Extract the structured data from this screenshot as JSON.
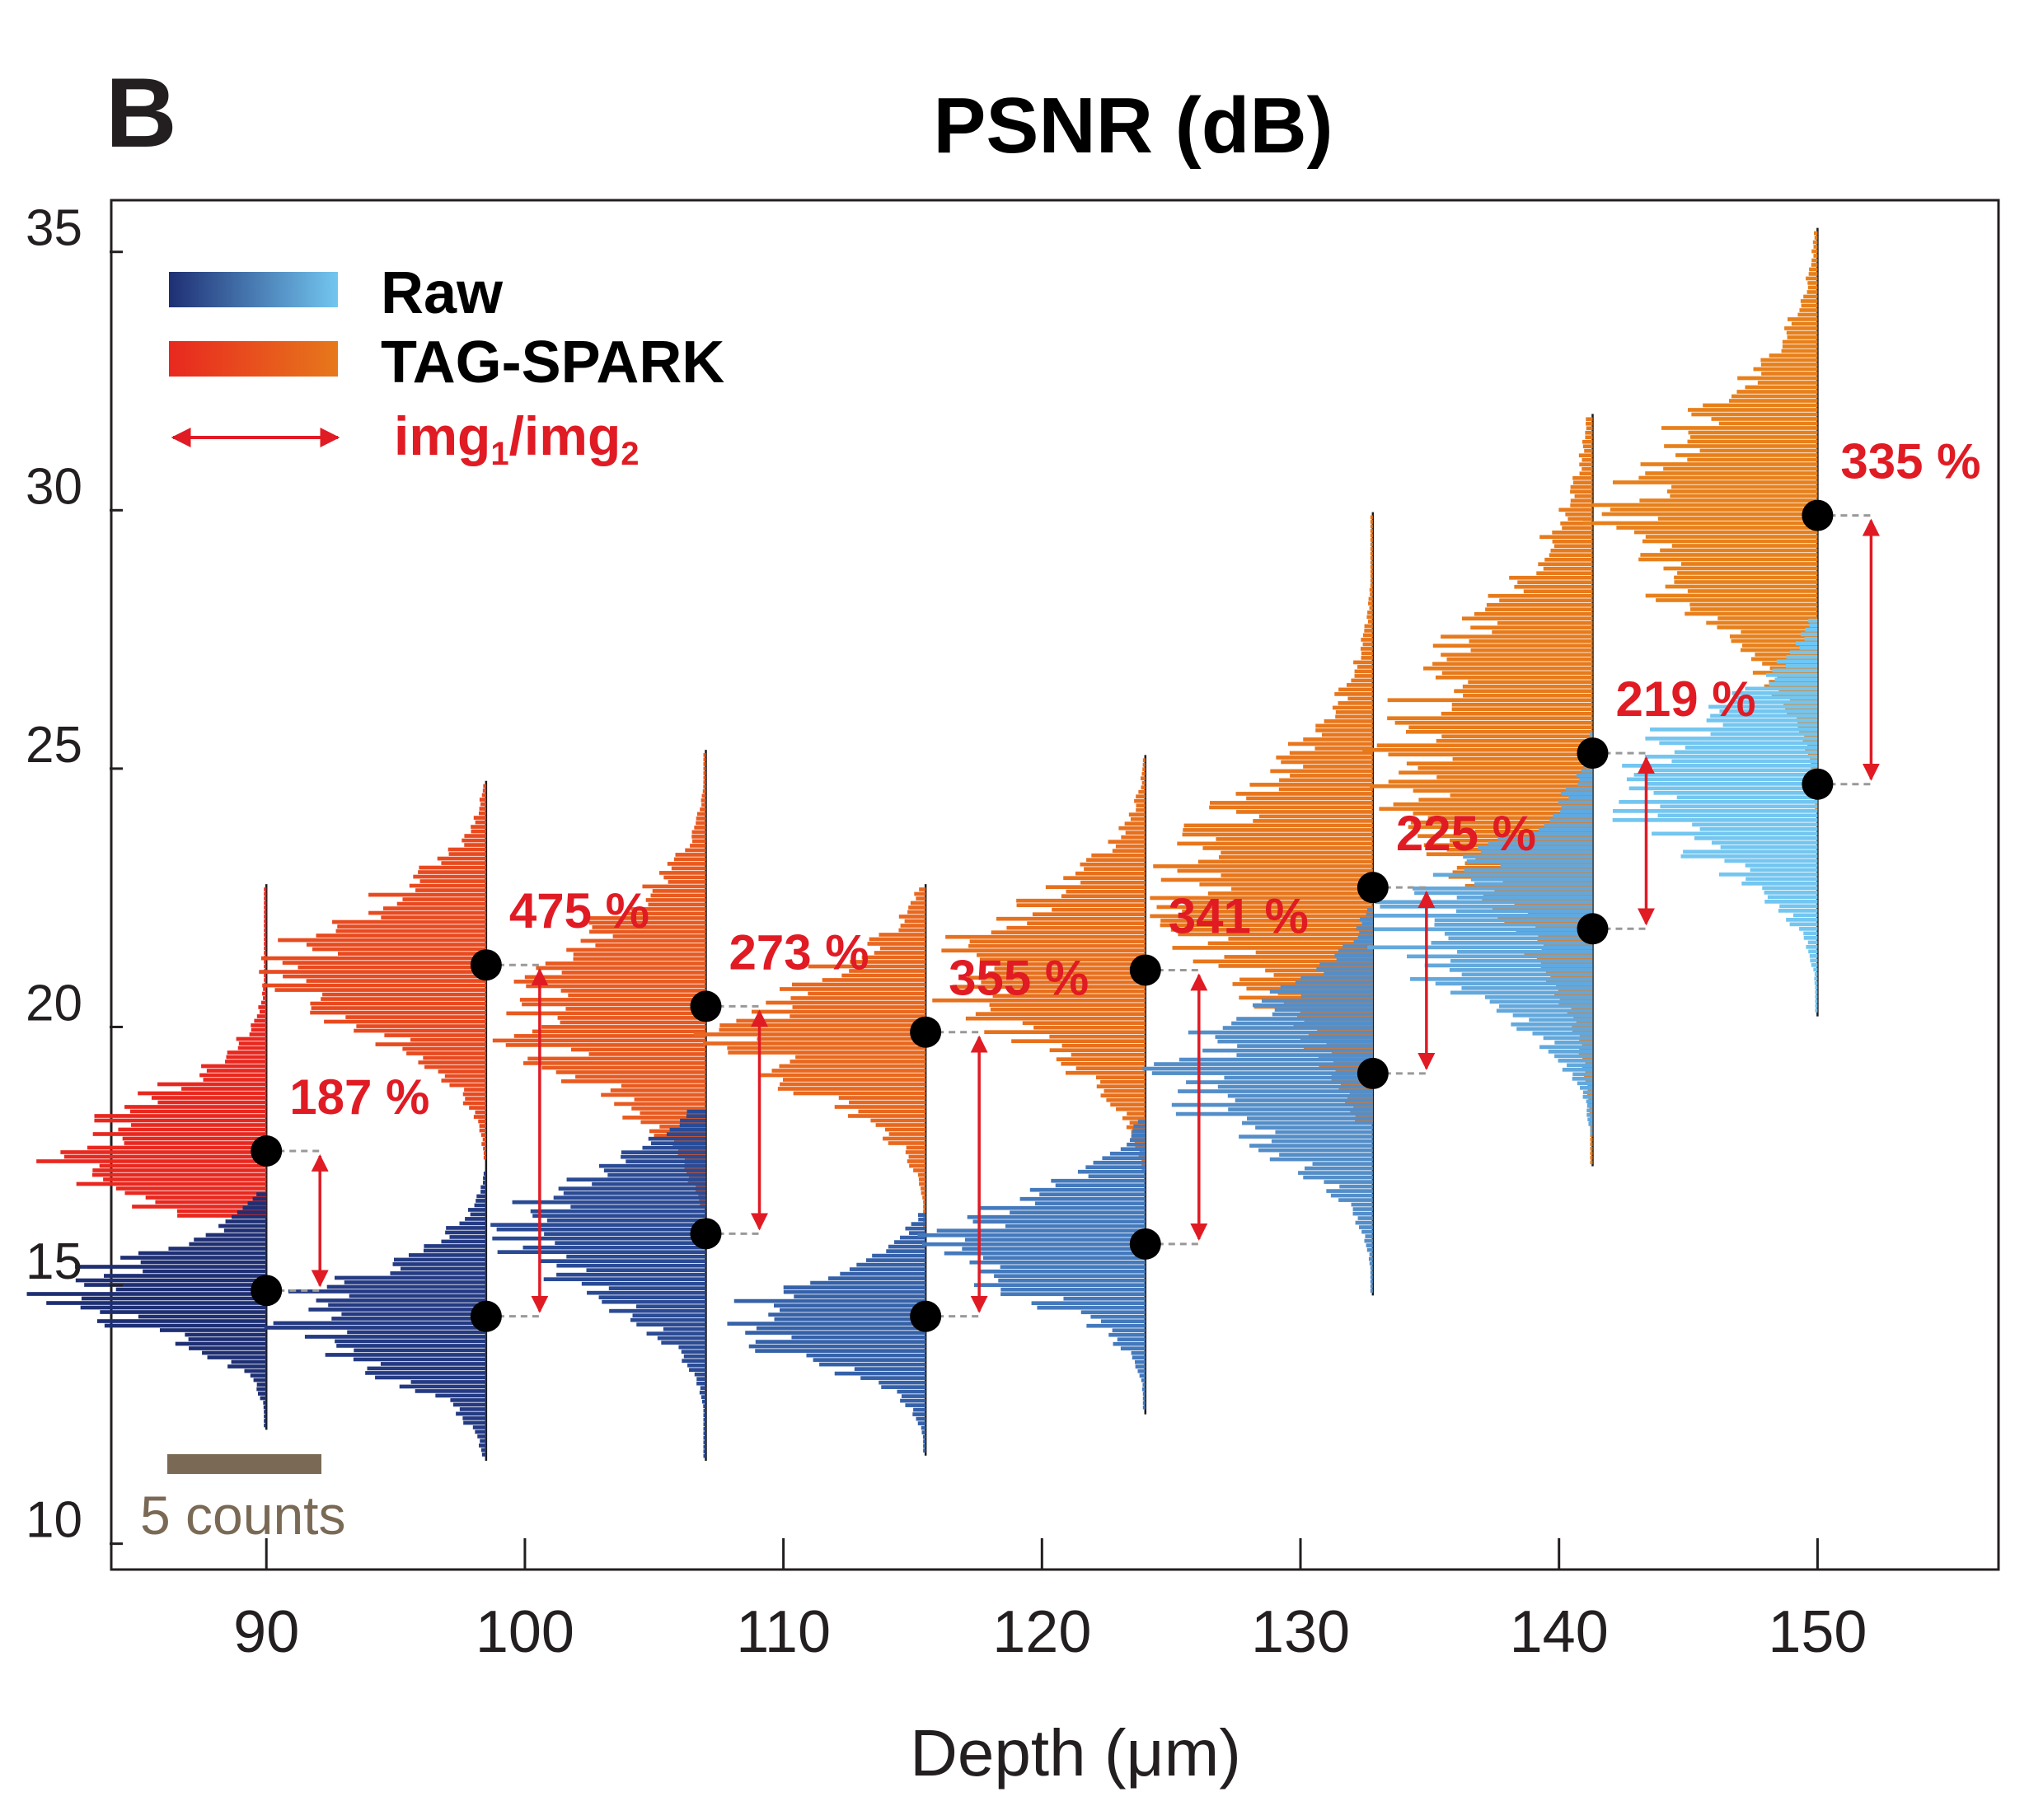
{
  "panel": {
    "letter": "B"
  },
  "chart_data": {
    "type": "histogram-violin",
    "title": "PSNR (dB)",
    "xlabel": "Depth (μm)",
    "ylabel": "",
    "xlim": [
      84,
      157
    ],
    "ylim": [
      9.5,
      36
    ],
    "x_ticks": [
      90,
      100,
      110,
      120,
      130,
      140,
      150
    ],
    "y_ticks": [
      10,
      15,
      20,
      25,
      30,
      35
    ],
    "grid": false,
    "legend": {
      "placement": "top-left",
      "entries": [
        {
          "label": "Raw",
          "color_start": "#1e2f73",
          "color_end": "#73c6f0"
        },
        {
          "label": "TAG-SPARK",
          "color_start": "#e8281f",
          "color_end": "#e7781b"
        },
        {
          "label_prefix": "img",
          "sub1": "1",
          "slash": "/img",
          "sub2": "2",
          "color": "#e01b24"
        }
      ]
    },
    "scale_bar": {
      "label": "5 counts",
      "counts": 5
    },
    "groups": [
      {
        "depth": 90,
        "raw": {
          "mean": 14.9,
          "min": 12.3,
          "max": 16.8,
          "color": "#1e2f73"
        },
        "tag": {
          "mean": 17.6,
          "min": 16.3,
          "max": 22.7,
          "color": "#e8281f"
        },
        "ratio_label": "187 %"
      },
      {
        "depth": 98.5,
        "raw": {
          "mean": 14.4,
          "min": 11.7,
          "max": 17.2,
          "color": "#243a82"
        },
        "tag": {
          "mean": 21.2,
          "min": 17.5,
          "max": 24.7,
          "color": "#e84a1f"
        },
        "ratio_label": "475 %"
      },
      {
        "depth": 107,
        "raw": {
          "mean": 16.0,
          "min": 11.7,
          "max": 18.4,
          "color": "#2a4a94"
        },
        "tag": {
          "mean": 20.4,
          "min": 16.6,
          "max": 25.3,
          "color": "#e85a1f"
        },
        "ratio_label": "273 %"
      },
      {
        "depth": 115.5,
        "raw": {
          "mean": 14.4,
          "min": 11.8,
          "max": 16.4,
          "color": "#3561a8"
        },
        "tag": {
          "mean": 19.9,
          "min": 16.2,
          "max": 22.7,
          "color": "#e8681e"
        },
        "ratio_label": "355 %"
      },
      {
        "depth": 124,
        "raw": {
          "mean": 15.8,
          "min": 12.6,
          "max": 18.2,
          "color": "#4479bc"
        },
        "tag": {
          "mean": 21.1,
          "min": 17.3,
          "max": 25.2,
          "color": "#e7701d"
        },
        "ratio_label": "341 %"
      },
      {
        "depth": 132.8,
        "raw": {
          "mean": 19.1,
          "min": 14.9,
          "max": 22.3,
          "color": "#548ec8"
        },
        "tag": {
          "mean": 22.7,
          "min": 18.2,
          "max": 29.9,
          "color": "#e7761c"
        },
        "ratio_label": "225 %"
      },
      {
        "depth": 141.3,
        "raw": {
          "mean": 21.9,
          "min": 17.9,
          "max": 25.7,
          "color": "#63a8dc"
        },
        "tag": {
          "mean": 25.3,
          "min": 17.4,
          "max": 31.8,
          "color": "#e77a1b"
        },
        "ratio_label": "219 %"
      },
      {
        "depth": 150,
        "raw": {
          "mean": 24.7,
          "min": 20.3,
          "max": 27.9,
          "color": "#73c6f0"
        },
        "tag": {
          "mean": 29.9,
          "min": 24.2,
          "max": 35.4,
          "color": "#e7801b"
        },
        "ratio_label": "335 %"
      }
    ]
  }
}
